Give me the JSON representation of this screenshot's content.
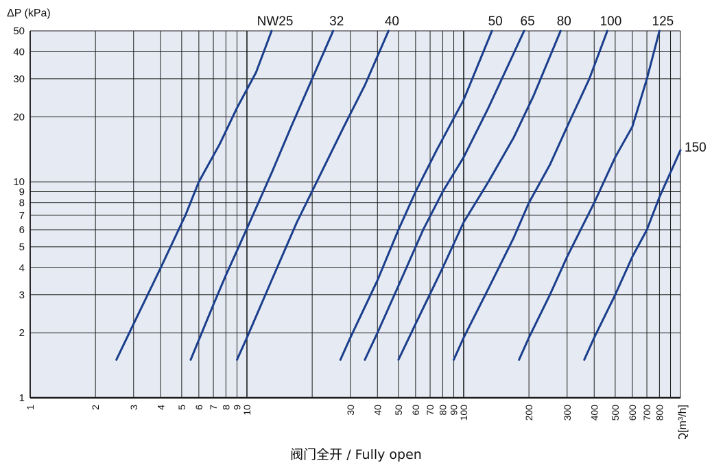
{
  "caption": "阀门全开 / Fully open",
  "chart_data": {
    "type": "line",
    "title": "",
    "ylabel": "ΔP (kPa)",
    "xlabel": "Q[m³/h]",
    "x_scale": "log",
    "y_scale": "log",
    "xlim": [
      1,
      1000
    ],
    "ylim": [
      1,
      50
    ],
    "grid": true,
    "y_ticks": [
      1,
      2,
      3,
      4,
      5,
      6,
      7,
      8,
      9,
      10,
      20,
      30,
      40,
      50
    ],
    "y_tick_labels": [
      "1",
      "2",
      "3",
      "4",
      "5",
      "6",
      "7",
      "8",
      "9",
      "10",
      "20",
      "30",
      "40",
      "50"
    ],
    "x_ticks": [
      1,
      2,
      3,
      4,
      5,
      6,
      7,
      8,
      9,
      10,
      30,
      40,
      50,
      60,
      70,
      80,
      90,
      100,
      200,
      300,
      400,
      500,
      600,
      700,
      800
    ],
    "x_tick_labels": [
      "1",
      "2",
      "3",
      "4",
      "5",
      "6",
      "7",
      "8",
      "9",
      "10",
      "30",
      "40",
      "50",
      "60",
      "70",
      "80",
      "90",
      "100",
      "200",
      "300",
      "400",
      "500",
      "600",
      "700",
      "800"
    ],
    "x_grid_extra": [
      20,
      900
    ],
    "series": [
      {
        "name": "NW25",
        "points": [
          [
            2.5,
            1.5
          ],
          [
            3,
            2.2
          ],
          [
            4,
            4
          ],
          [
            5.2,
            7
          ],
          [
            6,
            10
          ],
          [
            7.5,
            15
          ],
          [
            9,
            22
          ],
          [
            11,
            32
          ],
          [
            13,
            50
          ]
        ]
      },
      {
        "name": "32",
        "points": [
          [
            5.5,
            1.5
          ],
          [
            7,
            2.7
          ],
          [
            8,
            3.7
          ],
          [
            9,
            4.8
          ],
          [
            10.3,
            6.5
          ],
          [
            13,
            11
          ],
          [
            16,
            18
          ],
          [
            20,
            30
          ],
          [
            25,
            50
          ]
        ]
      },
      {
        "name": "40",
        "points": [
          [
            9,
            1.5
          ],
          [
            10,
            1.9
          ],
          [
            13,
            3.5
          ],
          [
            17,
            6.5
          ],
          [
            22,
            11
          ],
          [
            28,
            18
          ],
          [
            35,
            28
          ],
          [
            45,
            50
          ]
        ]
      },
      {
        "name": "50",
        "points": [
          [
            27,
            1.5
          ],
          [
            30,
            1.9
          ],
          [
            40,
            3.5
          ],
          [
            50,
            6
          ],
          [
            60,
            9
          ],
          [
            75,
            14
          ],
          [
            100,
            24
          ],
          [
            135,
            50
          ]
        ]
      },
      {
        "name": "65",
        "points": [
          [
            35,
            1.5
          ],
          [
            40,
            2
          ],
          [
            50,
            3.3
          ],
          [
            65,
            6
          ],
          [
            80,
            9
          ],
          [
            100,
            13
          ],
          [
            130,
            22
          ],
          [
            190,
            50
          ]
        ]
      },
      {
        "name": "80",
        "points": [
          [
            50,
            1.5
          ],
          [
            60,
            2.2
          ],
          [
            80,
            4
          ],
          [
            100,
            6.5
          ],
          [
            130,
            10
          ],
          [
            170,
            16
          ],
          [
            210,
            25
          ],
          [
            280,
            50
          ]
        ]
      },
      {
        "name": "100",
        "points": [
          [
            90,
            1.5
          ],
          [
            100,
            1.9
          ],
          [
            130,
            3.2
          ],
          [
            170,
            5.5
          ],
          [
            200,
            8
          ],
          [
            250,
            12
          ],
          [
            300,
            18
          ],
          [
            380,
            30
          ],
          [
            460,
            50
          ]
        ]
      },
      {
        "name": "125",
        "points": [
          [
            180,
            1.5
          ],
          [
            200,
            1.9
          ],
          [
            250,
            3
          ],
          [
            300,
            4.5
          ],
          [
            400,
            8
          ],
          [
            500,
            13
          ],
          [
            600,
            18
          ],
          [
            700,
            30
          ],
          [
            800,
            50
          ]
        ]
      },
      {
        "name": "150",
        "points": [
          [
            360,
            1.5
          ],
          [
            400,
            1.9
          ],
          [
            500,
            3
          ],
          [
            600,
            4.5
          ],
          [
            700,
            6
          ],
          [
            800,
            8.5
          ],
          [
            1000,
            14
          ]
        ]
      }
    ],
    "colors": {
      "curve": "#1a3e8c",
      "plot_bg": "#e6ebf3",
      "grid": "#1a1a1a"
    }
  }
}
